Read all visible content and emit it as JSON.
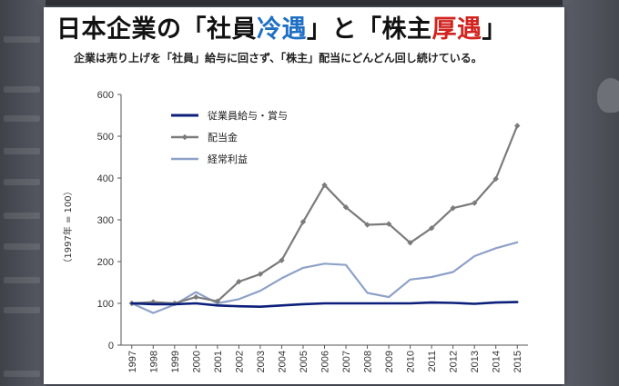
{
  "title": {
    "part1": "日本企業の「社員",
    "blue": "冷遇",
    "part2": "」と「株主",
    "red": "厚遇",
    "part3": "」"
  },
  "subtitle": "企業は売り上げを「社員」給与に回さず、「株主」配当にどんどん回し続けている。",
  "colors": {
    "wages": "#0c1f7a",
    "dividends": "#7b7b7b",
    "profits": "#8ea1c8",
    "title_blue": "#1f6fc4",
    "title_red": "#d2231f"
  },
  "chart_data": {
    "type": "line",
    "ylabel": "（1997年 = 100）",
    "ylim": [
      0,
      600
    ],
    "yticks": [
      0,
      100,
      200,
      300,
      400,
      500,
      600
    ],
    "x": [
      "1997",
      "1998",
      "1999",
      "2000",
      "2001",
      "2002",
      "2003",
      "2004",
      "2005",
      "2006",
      "2007",
      "2008",
      "2009",
      "2010",
      "2011",
      "2012",
      "2013",
      "2014",
      "2015"
    ],
    "legend_position": "top-left",
    "grid": false,
    "series": [
      {
        "name": "従業員給与・賞与",
        "values": [
          100,
          98,
          98,
          100,
          95,
          93,
          92,
          95,
          98,
          100,
          100,
          100,
          100,
          100,
          102,
          101,
          99,
          102,
          103
        ]
      },
      {
        "name": "配当金",
        "marker": true,
        "values": [
          100,
          103,
          100,
          115,
          105,
          152,
          170,
          203,
          295,
          383,
          330,
          288,
          290,
          245,
          280,
          328,
          340,
          398,
          525
        ]
      },
      {
        "name": "経常利益",
        "values": [
          100,
          77,
          97,
          127,
          100,
          110,
          130,
          160,
          185,
          195,
          192,
          125,
          115,
          157,
          163,
          175,
          213,
          232,
          246
        ]
      }
    ]
  }
}
